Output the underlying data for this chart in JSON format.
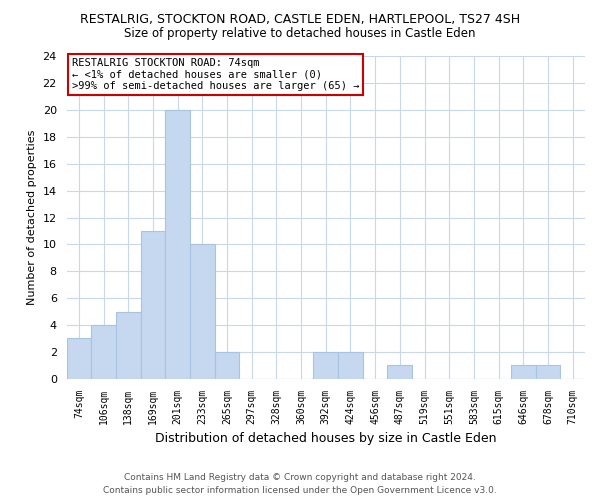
{
  "title": "RESTALRIG, STOCKTON ROAD, CASTLE EDEN, HARTLEPOOL, TS27 4SH",
  "subtitle": "Size of property relative to detached houses in Castle Eden",
  "xlabel": "Distribution of detached houses by size in Castle Eden",
  "ylabel": "Number of detached properties",
  "categories": [
    "74sqm",
    "106sqm",
    "138sqm",
    "169sqm",
    "201sqm",
    "233sqm",
    "265sqm",
    "297sqm",
    "328sqm",
    "360sqm",
    "392sqm",
    "424sqm",
    "456sqm",
    "487sqm",
    "519sqm",
    "551sqm",
    "583sqm",
    "615sqm",
    "646sqm",
    "678sqm",
    "710sqm"
  ],
  "values": [
    3,
    4,
    5,
    11,
    20,
    10,
    2,
    0,
    0,
    0,
    2,
    2,
    0,
    1,
    0,
    0,
    0,
    0,
    1,
    1,
    0
  ],
  "bar_color": "#c5d8f0",
  "bar_edge_color": "#a8c4e0",
  "ylim": [
    0,
    24
  ],
  "yticks": [
    0,
    2,
    4,
    6,
    8,
    10,
    12,
    14,
    16,
    18,
    20,
    22,
    24
  ],
  "annotation_line1": "RESTALRIG STOCKTON ROAD: 74sqm",
  "annotation_line2": "← <1% of detached houses are smaller (0)",
  "annotation_line3": ">99% of semi-detached houses are larger (65) →",
  "annotation_box_color": "#ffffff",
  "annotation_box_edge_color": "#cc0000",
  "footer_line1": "Contains HM Land Registry data © Crown copyright and database right 2024.",
  "footer_line2": "Contains public sector information licensed under the Open Government Licence v3.0.",
  "bg_color": "#ffffff",
  "grid_color": "#c8d8e8",
  "title_fontsize": 9,
  "subtitle_fontsize": 8.5,
  "ylabel_fontsize": 8,
  "xlabel_fontsize": 9
}
